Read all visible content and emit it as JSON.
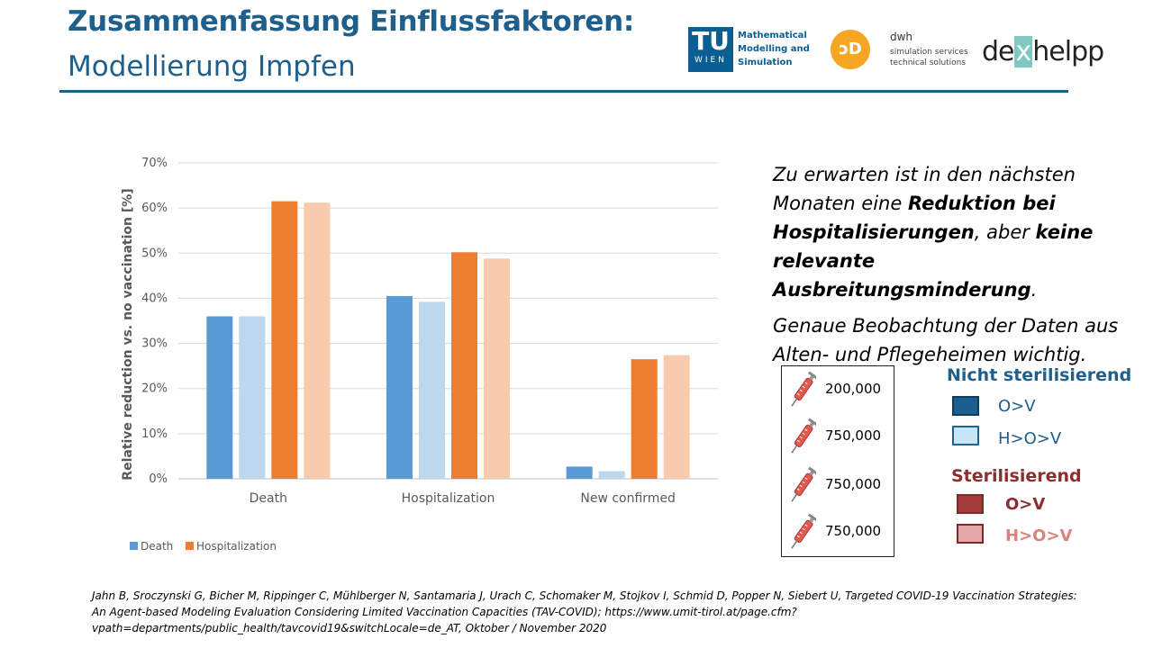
{
  "header": {
    "title": "Zusammenfassung Einflussfaktoren:",
    "subtitle": "Modellierung Impfen"
  },
  "logos": {
    "tu_letters": "TU",
    "tu_wien": "WIEN",
    "tu_text_1": "Mathematical",
    "tu_text_2": "Modelling and",
    "tu_text_3": "Simulation",
    "dwh_name": "dwh",
    "dwh_sub_1": "simulation services",
    "dwh_sub_2": "technical solutions",
    "dex_left": "de",
    "dex_x": "x",
    "dex_right": "helpp"
  },
  "chart_data": {
    "type": "bar",
    "categories": [
      "Death",
      "Hospitalization",
      "New confirmed"
    ],
    "series": [
      {
        "name": "Death",
        "color": "#5b9bd5",
        "values": [
          36,
          40.5,
          2.7
        ]
      },
      {
        "name": "",
        "color": "#bdd7ee",
        "values": [
          36,
          39.2,
          1.7
        ]
      },
      {
        "name": "Hospitalization",
        "color": "#ed7d31",
        "values": [
          61.5,
          50.2,
          26.5
        ]
      },
      {
        "name": "",
        "color": "#f8cbad",
        "values": [
          61.2,
          48.8,
          27.4
        ]
      }
    ],
    "ylabel": "Relative reduction vs. no vaccination [%]",
    "ylim": [
      0,
      70
    ],
    "yticks": [
      "0%",
      "10%",
      "20%",
      "30%",
      "40%",
      "50%",
      "60%",
      "70%"
    ],
    "grid": true,
    "legend_placement": "bottom-left"
  },
  "note": {
    "line1_a": "Zu erwarten ist in den nächsten Monaten eine ",
    "line1_b": "Reduktion bei Hospitalisierungen",
    "line1_c": ", aber ",
    "line1_d": "keine relevante Ausbreitungsminderung",
    "line1_e": ".",
    "line2": "Genaue Beobachtung der Daten aus Alten- und Pflegeheimen wichtig."
  },
  "vaccine_doses": [
    "200,000",
    "750,000",
    "750,000",
    "750,000"
  ],
  "vaccine_legend": {
    "nonsteril_title": "Nicht sterilisierend",
    "nonsteril_title_color": "#1f5f8b",
    "nonsteril_items": [
      {
        "label": "O>V",
        "fill": "#1b5f8e",
        "border": "#103d5c",
        "text_color": "#1f5f8b"
      },
      {
        "label": "H>O>V",
        "fill": "#c6e6f7",
        "border": "#1f5f8b",
        "text_color": "#1f5f8b"
      }
    ],
    "steril_title": "Sterilisierend",
    "steril_title_color": "#8b2e2e",
    "steril_items": [
      {
        "label": "O>V",
        "fill": "#a33a3a",
        "border": "#7a2a2a",
        "text_color": "#8b2e2e"
      },
      {
        "label": "H>O>V",
        "fill": "#e4a9a7",
        "border": "#7a2a2a",
        "text_color": "#d9837e"
      }
    ]
  },
  "citation": "Jahn B, Sroczynski G, Bicher M, Rippinger C, Mühlberger N, Santamaria J, Urach C, Schomaker M, Stojkov I, Schmid D, Popper N, Siebert U, Targeted COVID-19 Vaccination Strategies: An Agent-based Modeling Evaluation Considering Limited Vaccination Capacities (TAV-COVID); https://www.umit-tirol.at/page.cfm?vpath=departments/public_health/tavcovid19&switchLocale=de_AT, Oktober / November 2020"
}
